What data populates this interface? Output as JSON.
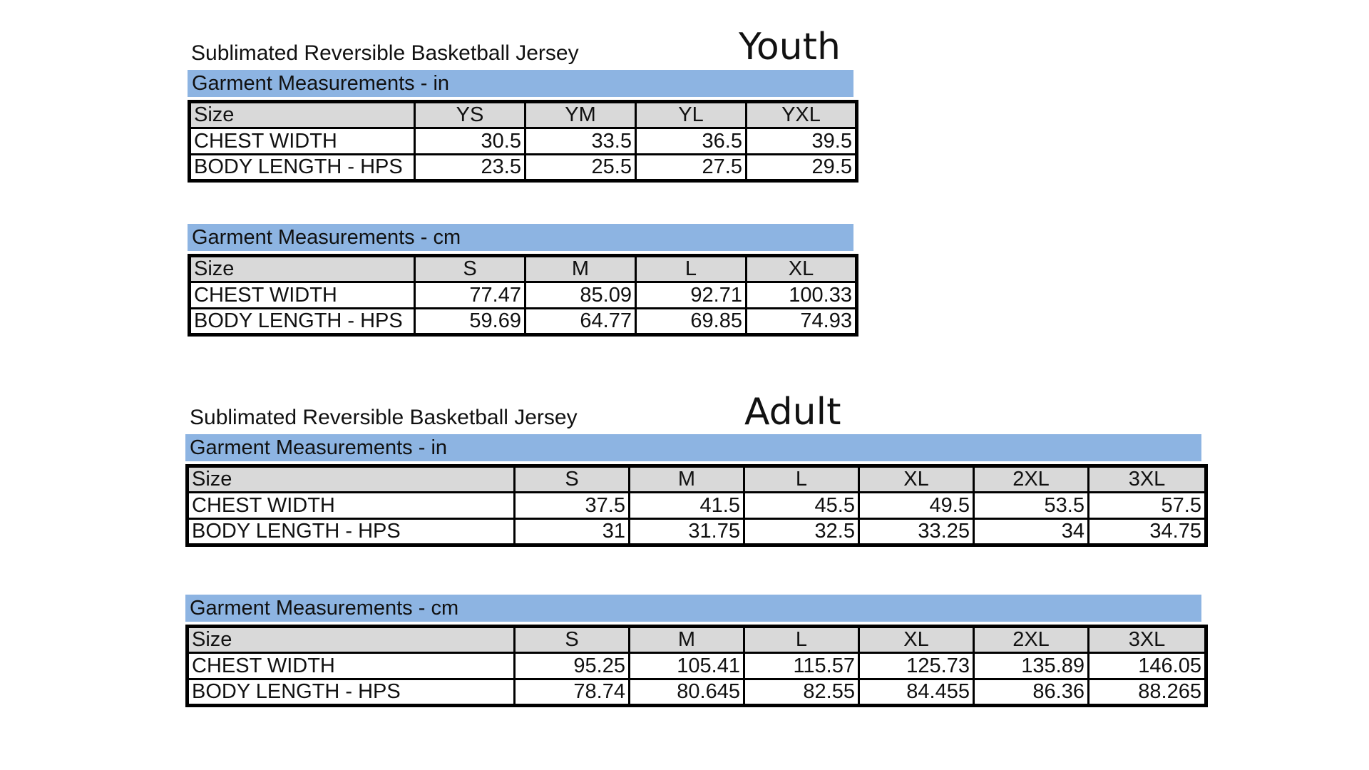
{
  "youth": {
    "product": "Sublimated Reversible Basketball Jersey",
    "title": "Youth",
    "tables": [
      {
        "unit_heading": "Garment Measurements - in",
        "header_label": "Size",
        "sizes": [
          "YS",
          "YM",
          "YL",
          "YXL"
        ],
        "rows": [
          {
            "label": "CHEST WIDTH",
            "values": [
              "30.5",
              "33.5",
              "36.5",
              "39.5"
            ]
          },
          {
            "label": "BODY LENGTH - HPS",
            "values": [
              "23.5",
              "25.5",
              "27.5",
              "29.5"
            ]
          }
        ]
      },
      {
        "unit_heading": "Garment Measurements - cm",
        "header_label": "Size",
        "sizes": [
          "S",
          "M",
          "L",
          "XL"
        ],
        "rows": [
          {
            "label": "CHEST WIDTH",
            "values": [
              "77.47",
              "85.09",
              "92.71",
              "100.33"
            ]
          },
          {
            "label": "BODY LENGTH - HPS",
            "values": [
              "59.69",
              "64.77",
              "69.85",
              "74.93"
            ]
          }
        ]
      }
    ]
  },
  "adult": {
    "product": "Sublimated Reversible Basketball Jersey",
    "title": "Adult",
    "tables": [
      {
        "unit_heading": "Garment Measurements - in",
        "header_label": "Size",
        "sizes": [
          "S",
          "M",
          "L",
          "XL",
          "2XL",
          "3XL"
        ],
        "rows": [
          {
            "label": "CHEST WIDTH",
            "values": [
              "37.5",
              "41.5",
              "45.5",
              "49.5",
              "53.5",
              "57.5"
            ]
          },
          {
            "label": "BODY LENGTH - HPS",
            "values": [
              "31",
              "31.75",
              "32.5",
              "33.25",
              "34",
              "34.75"
            ]
          }
        ]
      },
      {
        "unit_heading": "Garment Measurements - cm",
        "header_label": "Size",
        "sizes": [
          "S",
          "M",
          "L",
          "XL",
          "2XL",
          "3XL"
        ],
        "rows": [
          {
            "label": "CHEST WIDTH",
            "values": [
              "95.25",
              "105.41",
              "115.57",
              "125.73",
              "135.89",
              "146.05"
            ]
          },
          {
            "label": "BODY LENGTH - HPS",
            "values": [
              "78.74",
              "80.645",
              "82.55",
              "84.455",
              "86.36",
              "88.265"
            ]
          }
        ]
      }
    ]
  },
  "colors": {
    "heading_band": "#8db4e2",
    "header_row": "#d9d9d9",
    "border": "#000000"
  }
}
